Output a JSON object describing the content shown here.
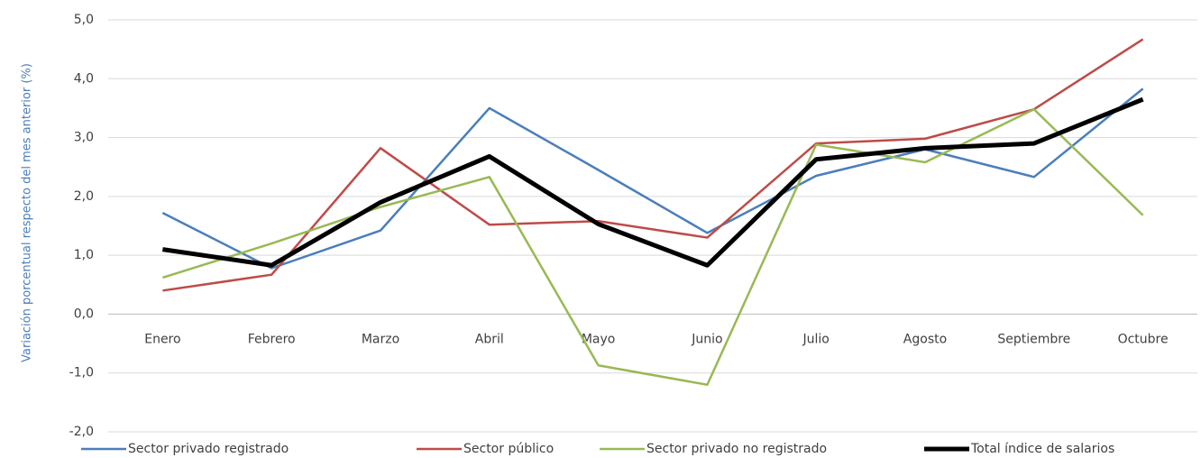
{
  "chart_data": {
    "type": "line",
    "y_label": "Variación porcentual respecto del mes anterior (%)",
    "categories": [
      "Enero",
      "Febrero",
      "Marzo",
      "Abril",
      "Mayo",
      "Junio",
      "Julio",
      "Agosto",
      "Septiembre",
      "Octubre"
    ],
    "series": [
      {
        "name": "Sector privado registrado",
        "color": "#4a7ebb",
        "values": [
          1.72,
          0.78,
          1.42,
          3.5,
          2.45,
          1.38,
          2.35,
          2.8,
          2.33,
          3.83
        ]
      },
      {
        "name": "Sector público",
        "color": "#be4b48",
        "values": [
          0.4,
          0.67,
          2.82,
          1.52,
          1.58,
          1.3,
          2.9,
          2.98,
          3.48,
          4.67
        ]
      },
      {
        "name": "Sector privado no registrado",
        "color": "#98b954",
        "values": [
          0.62,
          1.2,
          1.82,
          2.33,
          -0.87,
          -1.2,
          2.88,
          2.58,
          3.48,
          1.68
        ]
      },
      {
        "name": "Total índice de salarios",
        "color": "#000000",
        "values": [
          1.1,
          0.83,
          1.9,
          2.68,
          1.53,
          0.83,
          2.63,
          2.82,
          2.9,
          3.65
        ]
      }
    ],
    "ylim": [
      -2,
      5
    ],
    "yticks": [
      {
        "value": -2,
        "label": "-2,0"
      },
      {
        "value": -1,
        "label": "-1,0"
      },
      {
        "value": 0,
        "label": "0,0"
      },
      {
        "value": 1,
        "label": "1,0"
      },
      {
        "value": 2,
        "label": "2,0"
      },
      {
        "value": 3,
        "label": "3,0"
      },
      {
        "value": 4,
        "label": "4,0"
      },
      {
        "value": 5,
        "label": "5,0"
      }
    ],
    "grid": true,
    "legend": "bottom"
  }
}
